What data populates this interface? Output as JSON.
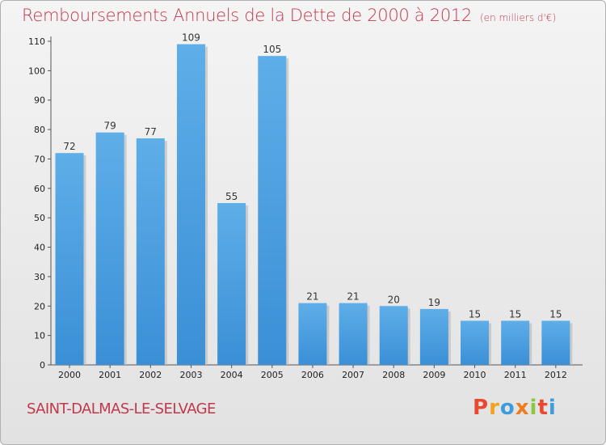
{
  "chart_data": {
    "type": "bar",
    "title": "Remboursements Annuels de la Dette de 2000 à 2012",
    "subtitle": "(en milliers d'€)",
    "categories": [
      "2000",
      "2001",
      "2002",
      "2003",
      "2004",
      "2005",
      "2006",
      "2007",
      "2008",
      "2009",
      "2010",
      "2011",
      "2012"
    ],
    "values": [
      72,
      79,
      77,
      109,
      55,
      105,
      21,
      21,
      20,
      19,
      15,
      15,
      15
    ],
    "xlabel": "",
    "ylabel": "",
    "ylim": [
      0,
      110
    ],
    "yticks": [
      0,
      10,
      20,
      30,
      40,
      50,
      60,
      70,
      80,
      90,
      100,
      110
    ],
    "grid": false,
    "bar_color": "#3a8fd6"
  },
  "footer": {
    "commune": "SAINT-DALMAS-LE-SELVAGE",
    "brand_letters": [
      "P",
      "r",
      "o",
      "x",
      "i",
      "t",
      "i"
    ],
    "brand_colors": [
      "#e8492f",
      "#f2a21c",
      "#3f9cdc",
      "#ee7d1e",
      "#8dc63f",
      "#e8492f",
      "#3f9cdc"
    ]
  }
}
